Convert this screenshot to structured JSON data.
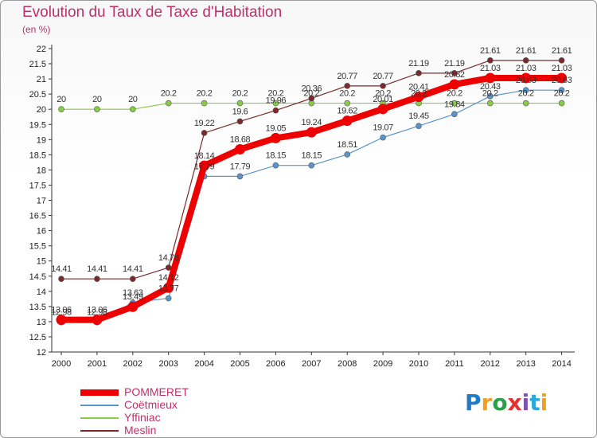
{
  "title": "Evolution du Taux de Taxe d'Habitation",
  "subtitle": "(en %)",
  "logo_text": "Proxiti",
  "chart_data": {
    "type": "line",
    "categories": [
      "2000",
      "2001",
      "2002",
      "2003",
      "2004",
      "2005",
      "2006",
      "2007",
      "2008",
      "2009",
      "2010",
      "2011",
      "2012",
      "2013",
      "2014"
    ],
    "y_ticks": [
      "12",
      "12.5",
      "13",
      "13.5",
      "14",
      "14.5",
      "15",
      "15.5",
      "16",
      "16.5",
      "17",
      "17.5",
      "18",
      "18.5",
      "19",
      "19.5",
      "20",
      "20.5",
      "21",
      "21.5",
      "22"
    ],
    "ylim": [
      12,
      22
    ],
    "grid": false,
    "legend_position": "bottom-left",
    "series": [
      {
        "name": "POMMERET",
        "color": "#ee0000",
        "width": 8,
        "marker": 6.5,
        "values": [
          13.06,
          13.06,
          13.49,
          14.12,
          18.14,
          18.68,
          19.05,
          19.24,
          19.62,
          20.01,
          20.41,
          20.82,
          21.03,
          21.03,
          21.03
        ],
        "labels": [
          "13.06",
          "13.06",
          "13.49",
          "14.12",
          "18.14",
          "18.68",
          "19.05",
          "19.24",
          "19.62",
          "20.01",
          "20.41",
          "20.82",
          "21.03",
          "21.03",
          "21.03"
        ]
      },
      {
        "name": "Coëtmieux",
        "color": "#5a94cc",
        "width": 1.2,
        "marker": 3.5,
        "values": [
          12.98,
          12.98,
          13.63,
          13.77,
          17.79,
          17.79,
          18.15,
          18.15,
          18.51,
          19.07,
          19.45,
          19.84,
          20.43,
          20.63,
          20.63
        ],
        "labels": [
          "12.98",
          "12.98",
          "13.63",
          "13.77",
          "17.79",
          "17.79",
          "18.15",
          "18.15",
          "18.51",
          "19.07",
          "19.45",
          "19.84",
          "20.43",
          "20.63",
          "20.63"
        ]
      },
      {
        "name": "Yffiniac",
        "color": "#88cc44",
        "width": 1.2,
        "marker": 3.5,
        "values": [
          20,
          20,
          20,
          20.2,
          20.2,
          20.2,
          20.2,
          20.2,
          20.2,
          20.2,
          20.2,
          20.2,
          20.2,
          20.2,
          20.2
        ],
        "labels": [
          "20",
          "20",
          "20",
          "20.2",
          "20.2",
          "20.2",
          "20.2",
          "20.2",
          "20.2",
          "20.2",
          "20.2",
          "20.2",
          "20.2",
          "20.2",
          "20.2"
        ]
      },
      {
        "name": "Meslin",
        "color": "#7a2a2a",
        "width": 1.2,
        "marker": 3.5,
        "values": [
          14.41,
          14.41,
          14.41,
          14.78,
          19.22,
          19.6,
          19.96,
          20.36,
          20.77,
          20.77,
          21.19,
          21.19,
          21.61,
          21.61,
          21.61
        ],
        "labels": [
          "14.41",
          "14.41",
          "14.41",
          "14.78",
          "19.22",
          "19.6",
          "19.96",
          "20.36",
          "20.77",
          "20.77",
          "21.19",
          "21.19",
          "21.61",
          "21.61",
          "21.61"
        ]
      }
    ]
  }
}
